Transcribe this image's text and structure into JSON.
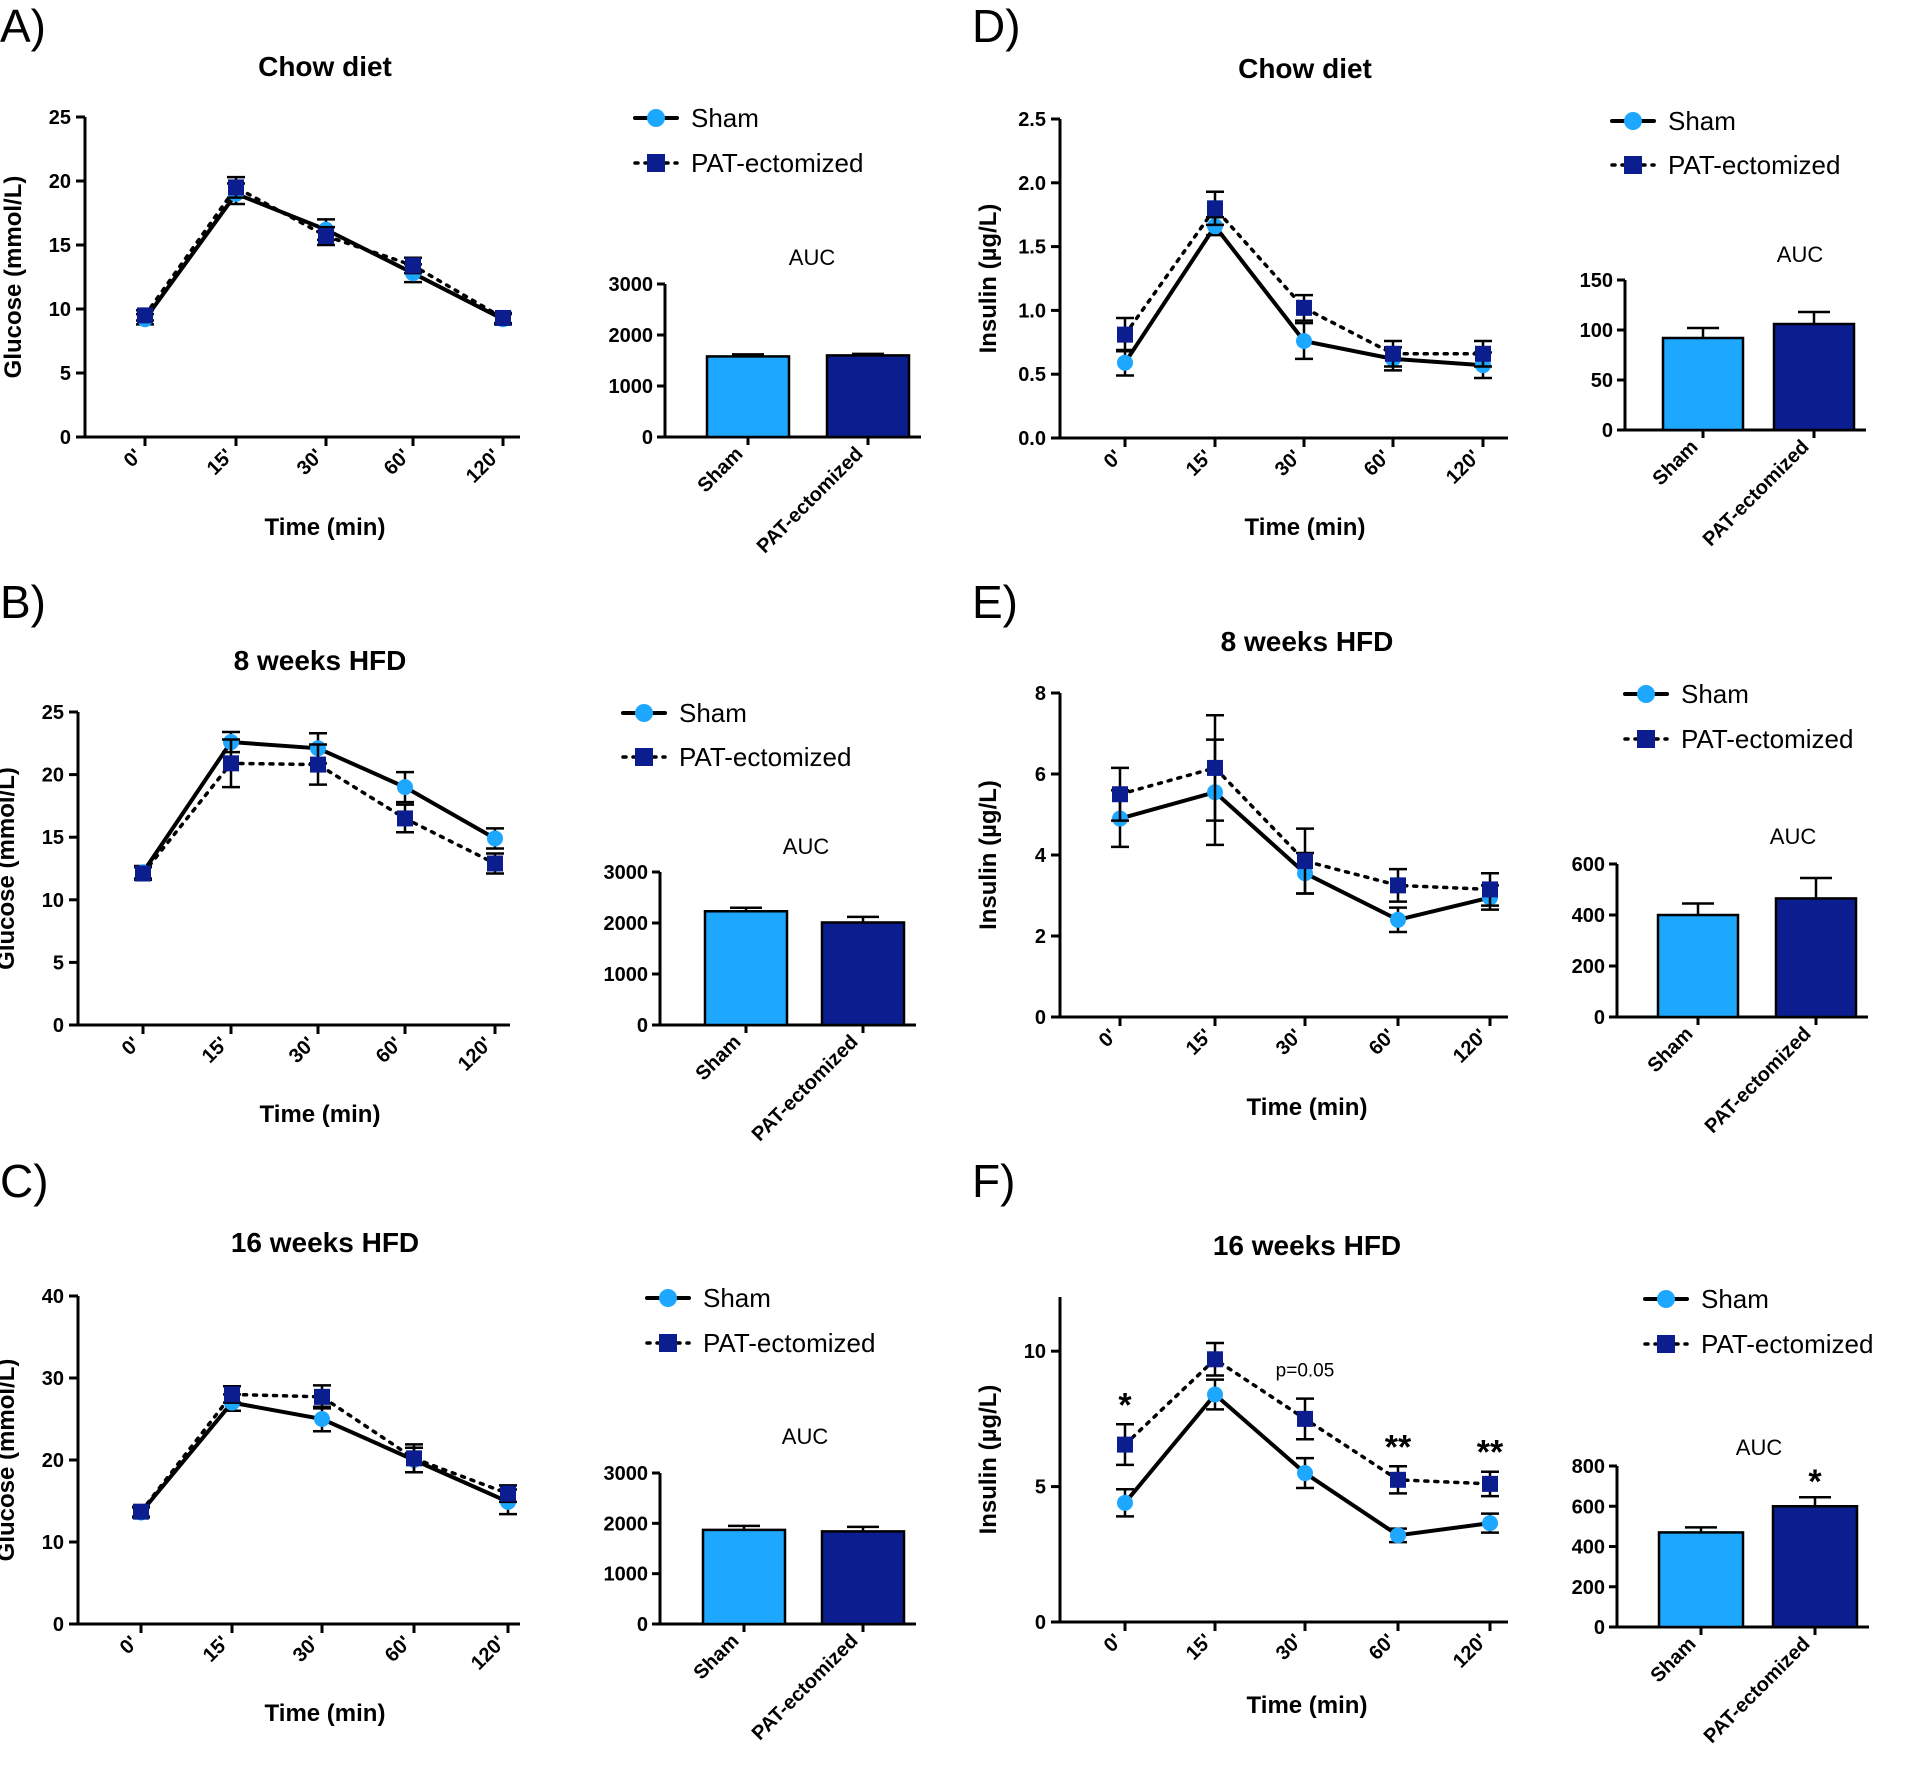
{
  "colors": {
    "sham": "#1ea7ff",
    "pat": "#0b1d8f",
    "axis": "#000000",
    "line": "#000000"
  },
  "chart_data": [
    {
      "id": "A",
      "panel_label": "A)",
      "title": "Chow diet",
      "type": "line",
      "x": [
        "0'",
        "15'",
        "30'",
        "60'",
        "120'"
      ],
      "xlabel": "Time (min)",
      "ylabel": "Glucose (mmol/L)",
      "ylim": [
        0,
        25
      ],
      "yticks": [
        "0",
        "5",
        "10",
        "15",
        "20",
        "25"
      ],
      "series": [
        {
          "name": "Sham",
          "values": [
            9.2,
            19.0,
            16.2,
            12.8,
            9.2
          ],
          "errors": [
            0.4,
            0.8,
            0.8,
            0.7,
            0.4
          ]
        },
        {
          "name": "PAT-ectomized",
          "values": [
            9.5,
            19.5,
            15.7,
            13.4,
            9.3
          ],
          "errors": [
            0.4,
            0.8,
            0.7,
            0.6,
            0.4
          ]
        }
      ],
      "auc": {
        "title": "AUC",
        "categories": [
          "Sham",
          "PAT-ectomized"
        ],
        "values": [
          1580,
          1600
        ],
        "errors": [
          40,
          30
        ],
        "ylim": [
          0,
          3000
        ],
        "yticks": [
          "0",
          "1000",
          "2000",
          "3000"
        ]
      }
    },
    {
      "id": "B",
      "panel_label": "B)",
      "title": "8 weeks HFD",
      "type": "line",
      "x": [
        "0'",
        "15'",
        "30'",
        "60'",
        "120'"
      ],
      "xlabel": "Time (min)",
      "ylabel": "Glucose (mmol/L)",
      "ylim": [
        0,
        25
      ],
      "yticks": [
        "0",
        "5",
        "10",
        "15",
        "20",
        "25"
      ],
      "series": [
        {
          "name": "Sham",
          "values": [
            12.2,
            22.6,
            22.1,
            19.0,
            14.9
          ],
          "errors": [
            0.5,
            0.8,
            1.2,
            1.2,
            0.8
          ]
        },
        {
          "name": "PAT-ectomized",
          "values": [
            12.1,
            20.9,
            20.8,
            16.5,
            12.9
          ],
          "errors": [
            0.5,
            1.9,
            1.6,
            1.1,
            0.8
          ]
        }
      ],
      "auc": {
        "title": "AUC",
        "categories": [
          "Sham",
          "PAT-ectomized"
        ],
        "values": [
          2230,
          2010
        ],
        "errors": [
          70,
          110
        ],
        "ylim": [
          0,
          3000
        ],
        "yticks": [
          "0",
          "1000",
          "2000",
          "3000"
        ]
      }
    },
    {
      "id": "C",
      "panel_label": "C)",
      "title": "16 weeks HFD",
      "type": "line",
      "x": [
        "0'",
        "15'",
        "30'",
        "60'",
        "120'"
      ],
      "xlabel": "Time (min)",
      "ylabel": "Glucose (mmol/L)",
      "ylim": [
        0,
        40
      ],
      "yticks": [
        "0",
        "10",
        "20",
        "30",
        "40"
      ],
      "series": [
        {
          "name": "Sham",
          "values": [
            13.6,
            27.0,
            25.0,
            20.0,
            14.9
          ],
          "errors": [
            0.6,
            1.0,
            1.5,
            1.5,
            1.5
          ]
        },
        {
          "name": "PAT-ectomized",
          "values": [
            13.7,
            28.0,
            27.7,
            20.2,
            15.9
          ],
          "errors": [
            0.6,
            1.0,
            1.4,
            1.7,
            1.0
          ]
        }
      ],
      "auc": {
        "title": "AUC",
        "categories": [
          "Sham",
          "PAT-ectomized"
        ],
        "values": [
          1870,
          1840
        ],
        "errors": [
          80,
          90
        ],
        "ylim": [
          0,
          3000
        ],
        "yticks": [
          "0",
          "1000",
          "2000",
          "3000"
        ]
      }
    },
    {
      "id": "D",
      "panel_label": "D)",
      "title": "Chow diet",
      "type": "line",
      "x": [
        "0'",
        "15'",
        "30'",
        "60'",
        "120'"
      ],
      "xlabel": "Time (min)",
      "ylabel": "Insulin (µg/L)",
      "ylim": [
        0,
        2.5
      ],
      "yticks": [
        "0.0",
        "0.5",
        "1.0",
        "1.5",
        "2.0",
        "2.5"
      ],
      "series": [
        {
          "name": "Sham",
          "values": [
            0.59,
            1.66,
            0.76,
            0.62,
            0.57
          ],
          "errors": [
            0.1,
            0.07,
            0.14,
            0.09,
            0.1
          ]
        },
        {
          "name": "PAT-ectomized",
          "values": [
            0.81,
            1.8,
            1.02,
            0.66,
            0.66
          ],
          "errors": [
            0.13,
            0.13,
            0.1,
            0.1,
            0.1
          ]
        }
      ],
      "auc": {
        "title": "AUC",
        "categories": [
          "Sham",
          "PAT-ectomized"
        ],
        "values": [
          92,
          106
        ],
        "errors": [
          10,
          12
        ],
        "ylim": [
          0,
          150
        ],
        "yticks": [
          "0",
          "50",
          "100",
          "150"
        ]
      }
    },
    {
      "id": "E",
      "panel_label": "E)",
      "title": "8 weeks HFD",
      "type": "line",
      "x": [
        "0'",
        "15'",
        "30'",
        "60'",
        "120'"
      ],
      "xlabel": "Time (min)",
      "ylabel": "Insulin (µg/L)",
      "ylim": [
        0,
        8
      ],
      "yticks": [
        "0",
        "2",
        "4",
        "6",
        "8"
      ],
      "series": [
        {
          "name": "Sham",
          "values": [
            4.9,
            5.55,
            3.55,
            2.4,
            2.95
          ],
          "errors": [
            0.7,
            1.3,
            0.5,
            0.3,
            0.3
          ]
        },
        {
          "name": "PAT-ectomized",
          "values": [
            5.5,
            6.15,
            3.85,
            3.25,
            3.15
          ],
          "errors": [
            0.65,
            1.3,
            0.8,
            0.4,
            0.4
          ]
        }
      ],
      "auc": {
        "title": "AUC",
        "categories": [
          "Sham",
          "PAT-ectomized"
        ],
        "values": [
          400,
          465
        ],
        "errors": [
          45,
          80
        ],
        "ylim": [
          0,
          600
        ],
        "yticks": [
          "0",
          "200",
          "400",
          "600"
        ]
      }
    },
    {
      "id": "F",
      "panel_label": "F)",
      "title": "16 weeks HFD",
      "type": "line",
      "x": [
        "0'",
        "15'",
        "30'",
        "60'",
        "120'"
      ],
      "xlabel": "Time (min)",
      "ylabel": "Insulin (µg/L)",
      "ylim": [
        0,
        12
      ],
      "yticks": [
        "0",
        "5",
        "10"
      ],
      "series": [
        {
          "name": "Sham",
          "values": [
            4.4,
            8.4,
            5.5,
            3.2,
            3.65
          ],
          "errors": [
            0.5,
            0.55,
            0.55,
            0.25,
            0.35
          ]
        },
        {
          "name": "PAT-ectomized",
          "values": [
            6.55,
            9.7,
            7.5,
            5.25,
            5.1
          ],
          "errors": [
            0.75,
            0.6,
            0.75,
            0.5,
            0.45
          ]
        }
      ],
      "annotations": [
        "*",
        "",
        "p=0.05",
        "**",
        "**"
      ],
      "auc": {
        "title": "AUC",
        "categories": [
          "Sham",
          "PAT-ectomized"
        ],
        "values": [
          470,
          600
        ],
        "errors": [
          25,
          45
        ],
        "ylim": [
          0,
          800
        ],
        "yticks": [
          "0",
          "200",
          "400",
          "600",
          "800"
        ],
        "annotation": "*"
      }
    }
  ]
}
